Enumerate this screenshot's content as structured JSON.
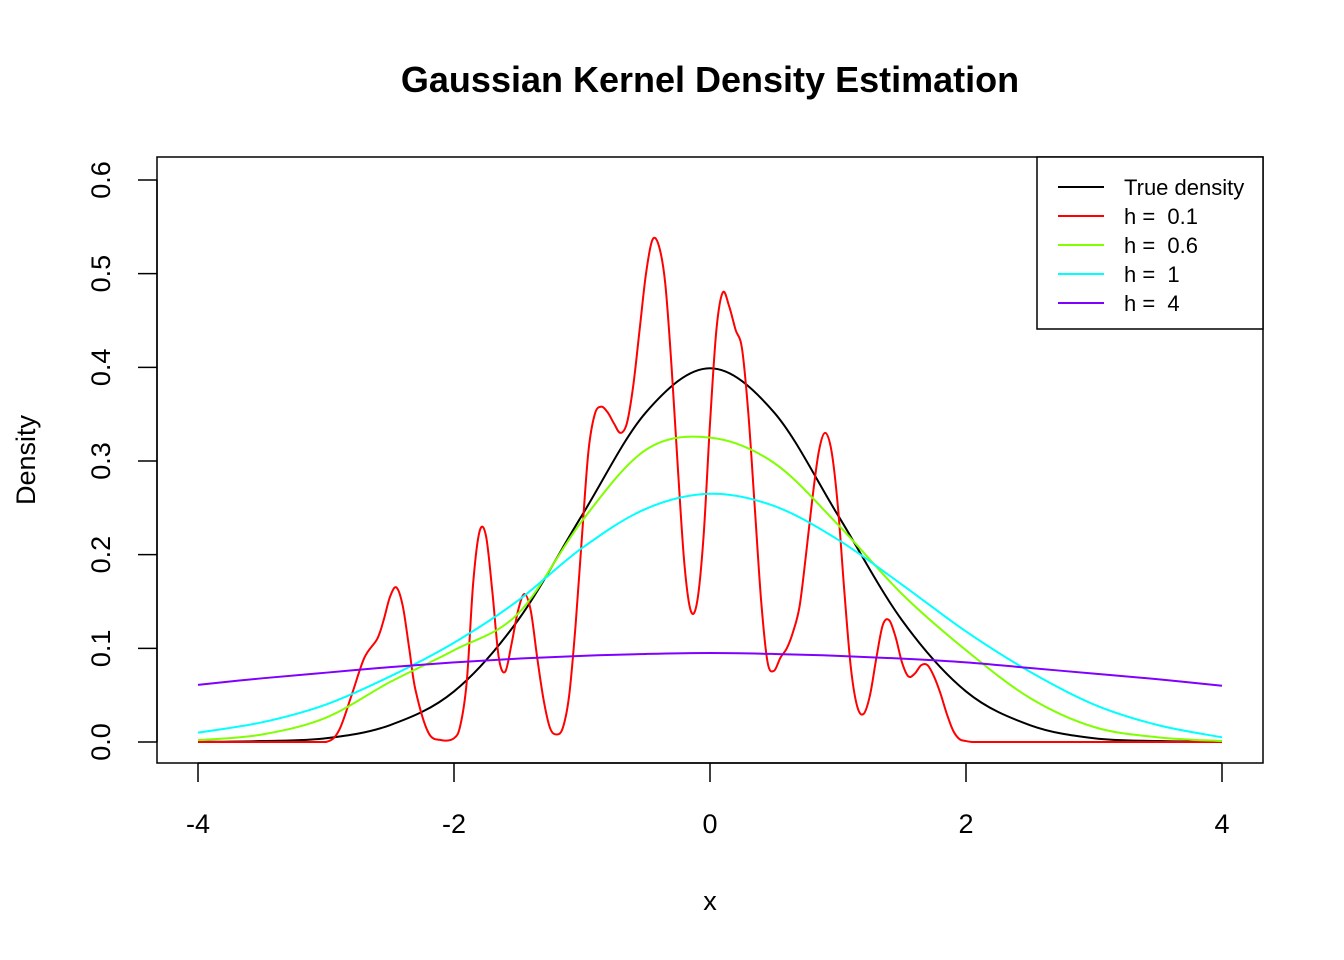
{
  "chart_data": {
    "type": "line",
    "title": "Gaussian Kernel Density Estimation",
    "xlabel": "x",
    "ylabel": "Density",
    "xlim": [
      -4,
      4
    ],
    "ylim": [
      0,
      0.6
    ],
    "x_ticks": [
      -4,
      -2,
      0,
      2,
      4
    ],
    "x_tick_labels": [
      "-4",
      "-2",
      "0",
      "2",
      "4"
    ],
    "y_ticks": [
      0,
      0.1,
      0.2,
      0.3,
      0.4,
      0.5,
      0.6
    ],
    "y_tick_labels": [
      "0.0",
      "0.1",
      "0.2",
      "0.3",
      "0.4",
      "0.5",
      "0.6"
    ],
    "grid": false,
    "legend_position": "top-right",
    "series": [
      {
        "name": "True density",
        "color": "#000000",
        "x": [
          -4,
          -3.5,
          -3,
          -2.5,
          -2,
          -1.5,
          -1,
          -0.5,
          0,
          0.5,
          1,
          1.5,
          2,
          2.5,
          3,
          3.5,
          4
        ],
        "y": [
          0.0001,
          0.001,
          0.004,
          0.018,
          0.054,
          0.13,
          0.242,
          0.352,
          0.399,
          0.352,
          0.242,
          0.13,
          0.054,
          0.018,
          0.004,
          0.001,
          0.0001
        ]
      },
      {
        "name": "h =  0.1",
        "color": "#ff0000",
        "x": [
          -4,
          -3.2,
          -3.0,
          -2.9,
          -2.8,
          -2.7,
          -2.6,
          -2.55,
          -2.5,
          -2.45,
          -2.4,
          -2.35,
          -2.3,
          -2.2,
          -2.1,
          -2.0,
          -1.95,
          -1.9,
          -1.85,
          -1.8,
          -1.75,
          -1.7,
          -1.65,
          -1.6,
          -1.55,
          -1.5,
          -1.45,
          -1.4,
          -1.35,
          -1.3,
          -1.25,
          -1.2,
          -1.15,
          -1.1,
          -1.05,
          -1.0,
          -0.95,
          -0.9,
          -0.85,
          -0.8,
          -0.75,
          -0.7,
          -0.65,
          -0.6,
          -0.55,
          -0.5,
          -0.45,
          -0.4,
          -0.35,
          -0.3,
          -0.25,
          -0.2,
          -0.15,
          -0.1,
          -0.05,
          0.0,
          0.05,
          0.1,
          0.15,
          0.2,
          0.25,
          0.3,
          0.35,
          0.4,
          0.45,
          0.5,
          0.55,
          0.6,
          0.65,
          0.7,
          0.75,
          0.8,
          0.85,
          0.9,
          0.95,
          1.0,
          1.05,
          1.1,
          1.15,
          1.2,
          1.25,
          1.3,
          1.35,
          1.4,
          1.45,
          1.5,
          1.55,
          1.6,
          1.65,
          1.7,
          1.75,
          1.8,
          1.85,
          1.9,
          1.95,
          2.0,
          2.05,
          2.1,
          2.15,
          2.2,
          2.25,
          2.3,
          2.35,
          2.4,
          2.45,
          2.5,
          2.55,
          2.6,
          2.7,
          2.8,
          3.0,
          3.5,
          4
        ],
        "y": [
          0,
          0,
          0.0,
          0.012,
          0.05,
          0.09,
          0.11,
          0.13,
          0.155,
          0.165,
          0.145,
          0.1,
          0.055,
          0.01,
          0.002,
          0.004,
          0.018,
          0.065,
          0.17,
          0.225,
          0.22,
          0.16,
          0.09,
          0.075,
          0.105,
          0.14,
          0.158,
          0.14,
          0.09,
          0.045,
          0.015,
          0.008,
          0.015,
          0.05,
          0.125,
          0.22,
          0.31,
          0.35,
          0.358,
          0.352,
          0.34,
          0.33,
          0.34,
          0.38,
          0.44,
          0.5,
          0.536,
          0.53,
          0.49,
          0.4,
          0.29,
          0.19,
          0.14,
          0.15,
          0.22,
          0.34,
          0.44,
          0.48,
          0.465,
          0.44,
          0.42,
          0.35,
          0.25,
          0.15,
          0.085,
          0.076,
          0.09,
          0.1,
          0.118,
          0.145,
          0.2,
          0.26,
          0.31,
          0.33,
          0.31,
          0.25,
          0.16,
          0.08,
          0.038,
          0.03,
          0.05,
          0.09,
          0.125,
          0.13,
          0.112,
          0.085,
          0.07,
          0.073,
          0.082,
          0.082,
          0.07,
          0.052,
          0.03,
          0.012,
          0.003,
          0.001,
          0.0,
          0,
          0,
          0,
          0,
          0,
          0,
          0,
          0,
          0,
          0,
          0,
          0,
          0,
          0,
          0,
          0
        ]
      },
      {
        "name": "h =  0.6",
        "color": "#80ff00",
        "x": [
          -4,
          -3.5,
          -3,
          -2.5,
          -2,
          -1.5,
          -1,
          -0.5,
          0,
          0.5,
          1,
          1.5,
          2,
          2.5,
          3,
          3.5,
          4
        ],
        "y": [
          0.002,
          0.008,
          0.026,
          0.064,
          0.098,
          0.137,
          0.236,
          0.312,
          0.325,
          0.298,
          0.232,
          0.158,
          0.098,
          0.047,
          0.016,
          0.005,
          0.001
        ]
      },
      {
        "name": "h =  1",
        "color": "#00ffff",
        "x": [
          -4,
          -3.5,
          -3,
          -2.5,
          -2,
          -1.5,
          -1,
          -0.5,
          0,
          0.5,
          1,
          1.5,
          2,
          2.5,
          3,
          3.5,
          4
        ],
        "y": [
          0.01,
          0.021,
          0.04,
          0.07,
          0.106,
          0.151,
          0.207,
          0.249,
          0.265,
          0.252,
          0.216,
          0.168,
          0.118,
          0.075,
          0.04,
          0.018,
          0.005
        ]
      },
      {
        "name": "h =  4",
        "color": "#8000ff",
        "x": [
          -4,
          -3.5,
          -3,
          -2.5,
          -2,
          -1.5,
          -1,
          -0.5,
          0,
          0.5,
          1,
          1.5,
          2,
          2.5,
          3,
          3.5,
          4
        ],
        "y": [
          0.061,
          0.068,
          0.074,
          0.08,
          0.085,
          0.089,
          0.092,
          0.094,
          0.095,
          0.094,
          0.092,
          0.089,
          0.085,
          0.079,
          0.073,
          0.067,
          0.06
        ]
      }
    ]
  }
}
